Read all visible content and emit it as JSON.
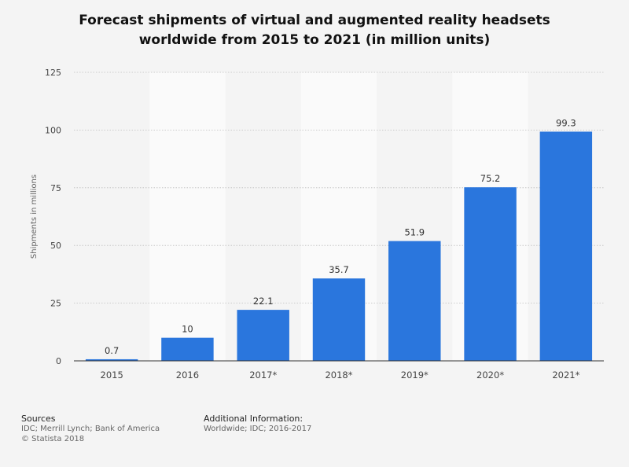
{
  "title_lines": [
    "Forecast shipments of virtual and augmented reality headsets",
    "worldwide from 2015 to 2021 (in million units)"
  ],
  "chart_data": {
    "type": "bar",
    "title": "Forecast shipments of virtual and augmented reality headsets worldwide from 2015 to 2021 (in million units)",
    "categories": [
      "2015",
      "2016",
      "2017*",
      "2018*",
      "2019*",
      "2020*",
      "2021*"
    ],
    "values": [
      0.7,
      10,
      22.1,
      35.7,
      51.9,
      75.2,
      99.3
    ],
    "value_labels": [
      "0.7",
      "10",
      "22.1",
      "35.7",
      "51.9",
      "75.2",
      "99.3"
    ],
    "xlabel": "",
    "ylabel": "Shipments in millions",
    "ylim": [
      0,
      125
    ],
    "yticks": [
      0,
      25,
      50,
      75,
      100,
      125
    ],
    "grid": true,
    "bar_color": "#2a76dd"
  },
  "footer": {
    "sources_heading": "Sources",
    "sources_text": "IDC; Merrill Lynch; Bank of America",
    "copyright": "© Statista 2018",
    "additional_heading": "Additional Information:",
    "additional_text": "Worldwide; IDC; 2016-2017"
  }
}
